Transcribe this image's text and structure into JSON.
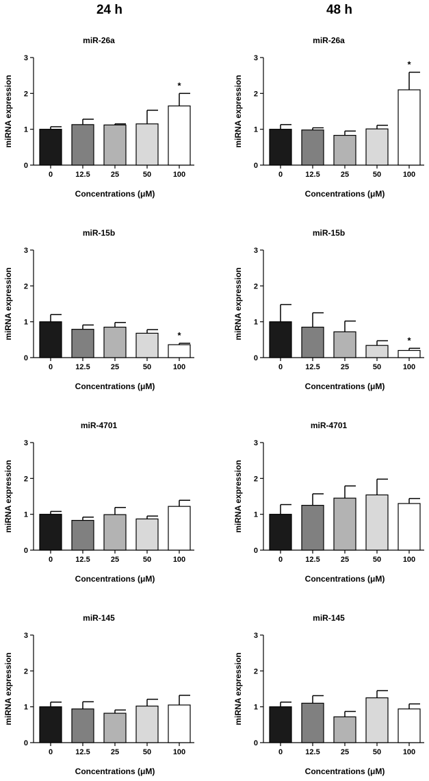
{
  "columns": [
    "24 h",
    "48 h"
  ],
  "colors": {
    "0": "#1a1a1a",
    "12.5": "#808080",
    "25": "#b3b3b3",
    "50": "#d9d9d9",
    "100": "#ffffff"
  },
  "chart_data": [
    {
      "type": "bar",
      "column": "24 h",
      "title": "miR-26a",
      "xlabel": "Concentrations (μM)",
      "ylabel": "miRNA expression",
      "ylim": [
        0,
        3
      ],
      "yticks": [
        "0",
        "1",
        "2",
        "3"
      ],
      "categories": [
        "0",
        "12.5",
        "25",
        "50",
        "100"
      ],
      "values": [
        1.0,
        1.13,
        1.12,
        1.15,
        1.65
      ],
      "errors": [
        0.07,
        0.15,
        0.03,
        0.38,
        0.35
      ],
      "annotations": [
        {
          "category": "100",
          "text": "*"
        }
      ]
    },
    {
      "type": "bar",
      "column": "48 h",
      "title": "miR-26a",
      "xlabel": "Concentrations (μM)",
      "ylabel": "miRNA expression",
      "ylim": [
        0,
        3
      ],
      "yticks": [
        "0",
        "1",
        "2",
        "3"
      ],
      "categories": [
        "0",
        "12.5",
        "25",
        "50",
        "100"
      ],
      "values": [
        1.0,
        0.98,
        0.83,
        1.01,
        2.1
      ],
      "errors": [
        0.13,
        0.06,
        0.12,
        0.1,
        0.49
      ],
      "annotations": [
        {
          "category": "100",
          "text": "*"
        }
      ]
    },
    {
      "type": "bar",
      "column": "24 h",
      "title": "miR-15b",
      "xlabel": "Concentrations (μM)",
      "ylabel": "miRNA expression",
      "ylim": [
        0,
        3
      ],
      "yticks": [
        "0",
        "1",
        "2",
        "3"
      ],
      "categories": [
        "0",
        "12.5",
        "25",
        "50",
        "100"
      ],
      "values": [
        1.0,
        0.79,
        0.85,
        0.68,
        0.36
      ],
      "errors": [
        0.2,
        0.12,
        0.13,
        0.1,
        0.04
      ],
      "annotations": [
        {
          "category": "100",
          "text": "*"
        }
      ]
    },
    {
      "type": "bar",
      "column": "48 h",
      "title": "miR-15b",
      "xlabel": "Concentrations (μM)",
      "ylabel": "miRNA expression",
      "ylim": [
        0,
        3
      ],
      "yticks": [
        "0",
        "1",
        "2",
        "3"
      ],
      "categories": [
        "0",
        "12.5",
        "25",
        "50",
        "100"
      ],
      "values": [
        1.0,
        0.85,
        0.72,
        0.34,
        0.2
      ],
      "errors": [
        0.48,
        0.4,
        0.3,
        0.13,
        0.06
      ],
      "annotations": [
        {
          "category": "100",
          "text": "*"
        }
      ]
    },
    {
      "type": "bar",
      "column": "24 h",
      "title": "miR-4701",
      "xlabel": "Concentrations (μM)",
      "ylabel": "miRNA expression",
      "ylim": [
        0,
        3
      ],
      "yticks": [
        "0",
        "1",
        "2",
        "3"
      ],
      "categories": [
        "0",
        "12.5",
        "25",
        "50",
        "100"
      ],
      "values": [
        1.0,
        0.83,
        0.99,
        0.87,
        1.22
      ],
      "errors": [
        0.08,
        0.09,
        0.2,
        0.08,
        0.17
      ],
      "annotations": []
    },
    {
      "type": "bar",
      "column": "48 h",
      "title": "miR-4701",
      "xlabel": "Concentrations (μM)",
      "ylabel": "miRNA expression",
      "ylim": [
        0,
        3
      ],
      "yticks": [
        "0",
        "1",
        "2",
        "3"
      ],
      "categories": [
        "0",
        "12.5",
        "25",
        "50",
        "100"
      ],
      "values": [
        1.0,
        1.25,
        1.45,
        1.54,
        1.3
      ],
      "errors": [
        0.27,
        0.32,
        0.34,
        0.44,
        0.14
      ],
      "annotations": []
    },
    {
      "type": "bar",
      "column": "24 h",
      "title": "miR-145",
      "xlabel": "Concentrations (μM)",
      "ylabel": "miRNA expression",
      "ylim": [
        0,
        3
      ],
      "yticks": [
        "0",
        "1",
        "2",
        "3"
      ],
      "categories": [
        "0",
        "12.5",
        "25",
        "50",
        "100"
      ],
      "values": [
        1.0,
        0.94,
        0.82,
        1.02,
        1.05
      ],
      "errors": [
        0.13,
        0.2,
        0.09,
        0.19,
        0.27
      ],
      "annotations": []
    },
    {
      "type": "bar",
      "column": "48 h",
      "title": "miR-145",
      "xlabel": "Concentrations (μM)",
      "ylabel": "miRNA expression",
      "ylim": [
        0,
        3
      ],
      "yticks": [
        "0",
        "1",
        "2",
        "3"
      ],
      "categories": [
        "0",
        "12.5",
        "25",
        "50",
        "100"
      ],
      "values": [
        1.0,
        1.1,
        0.72,
        1.25,
        0.94
      ],
      "errors": [
        0.13,
        0.21,
        0.15,
        0.2,
        0.14
      ],
      "annotations": []
    }
  ]
}
